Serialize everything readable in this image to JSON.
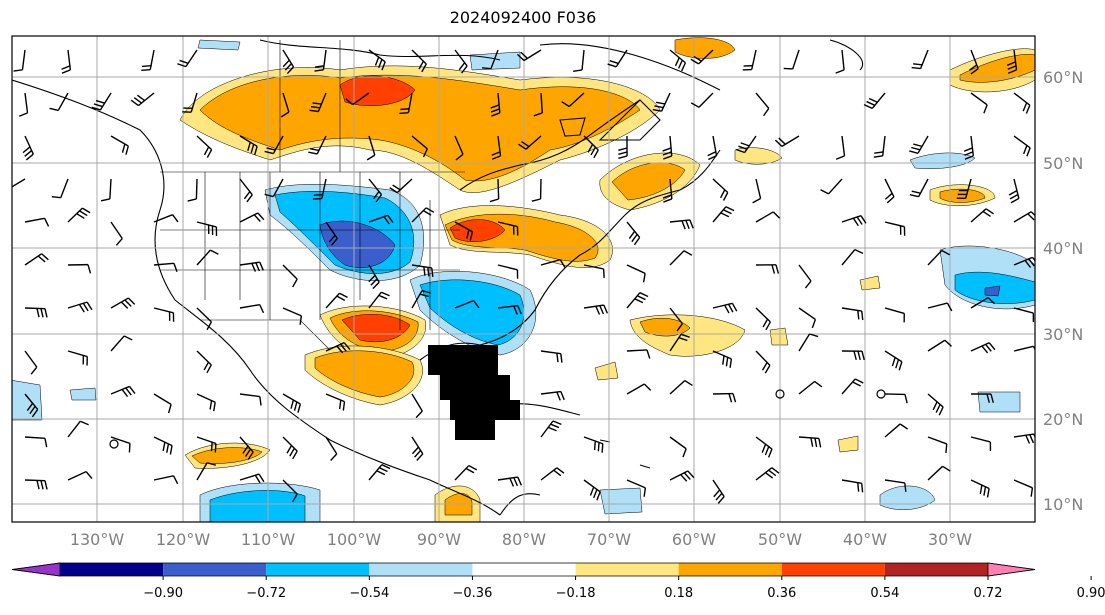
{
  "title": "2024092400 F036",
  "longitude_labels": [
    "130°W",
    "120°W",
    "110°W",
    "100°W",
    "90°W",
    "80°W",
    "70°W",
    "60°W",
    "50°W",
    "40°W",
    "30°W"
  ],
  "latitude_labels": [
    "60°N",
    "50°N",
    "40°N",
    "30°N",
    "20°N",
    "10°N"
  ],
  "colorbar": {
    "ticks": [
      "−0.90",
      "−0.72",
      "−0.54",
      "−0.36",
      "−0.18",
      "0.18",
      "0.36",
      "0.54",
      "0.72",
      "0.90"
    ],
    "colors": [
      "#9932cc",
      "#00008b",
      "#3a5fcd",
      "#00bfff",
      "#b0e0f8",
      "#ffffff",
      "#ffe680",
      "#ffa500",
      "#ff4000",
      "#b22222",
      "#ff80b0"
    ],
    "extend": "both"
  },
  "colors": {
    "land_outline": "#000000",
    "grid": "#a9a9a9",
    "wind_barb": "#000000",
    "marker_cluster": "#000000"
  }
}
